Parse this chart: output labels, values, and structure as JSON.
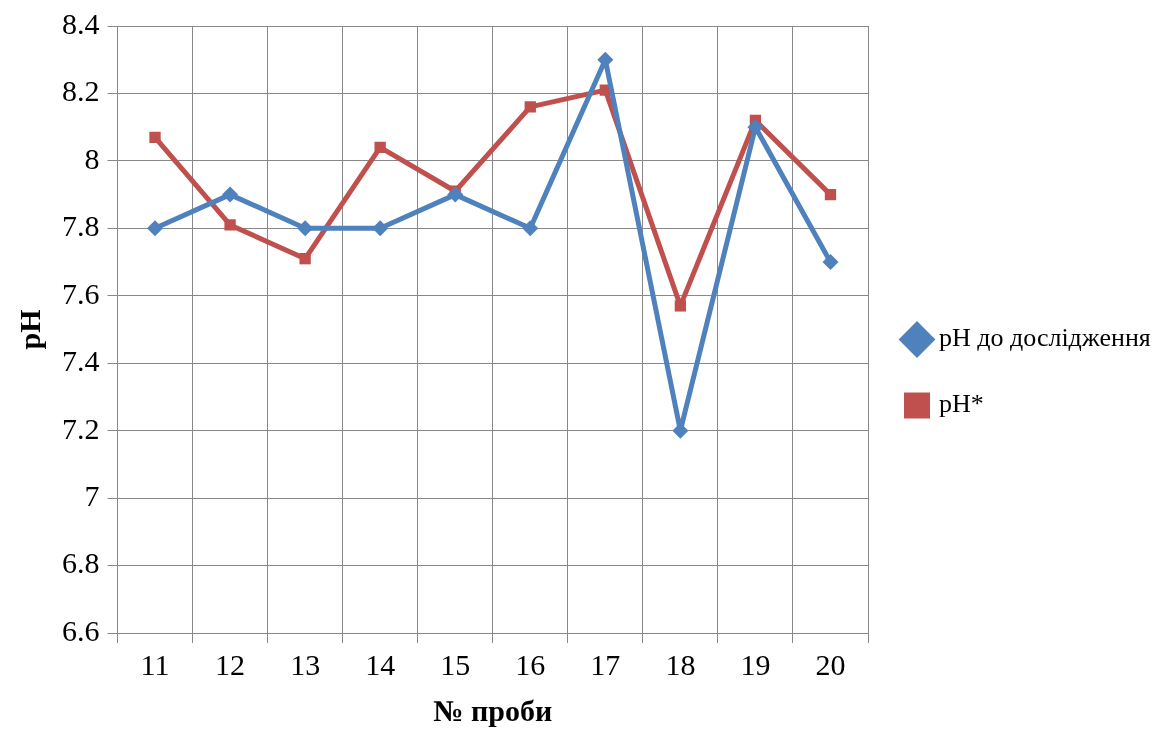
{
  "chart_data": {
    "type": "line",
    "xlabel": "№ проби",
    "ylabel": "pH",
    "categories": [
      "11",
      "12",
      "13",
      "14",
      "15",
      "16",
      "17",
      "18",
      "19",
      "20"
    ],
    "series": [
      {
        "name": "pH*",
        "color": "#c0504d",
        "marker": "square",
        "values": [
          8.07,
          7.81,
          7.71,
          8.04,
          7.91,
          8.16,
          8.21,
          7.57,
          8.12,
          7.9
        ]
      },
      {
        "name": "pH до дослідження",
        "color": "#4f81bd",
        "marker": "diamond",
        "values": [
          7.8,
          7.9,
          7.8,
          7.8,
          7.9,
          7.8,
          8.3,
          7.2,
          8.1,
          7.7
        ]
      }
    ],
    "ylim": [
      6.6,
      8.4
    ],
    "yticks": [
      6.6,
      6.8,
      7,
      7.2,
      7.4,
      7.6,
      7.8,
      8,
      8.2,
      8.4
    ],
    "grid": true,
    "legend": "right",
    "line_style": "solid"
  }
}
